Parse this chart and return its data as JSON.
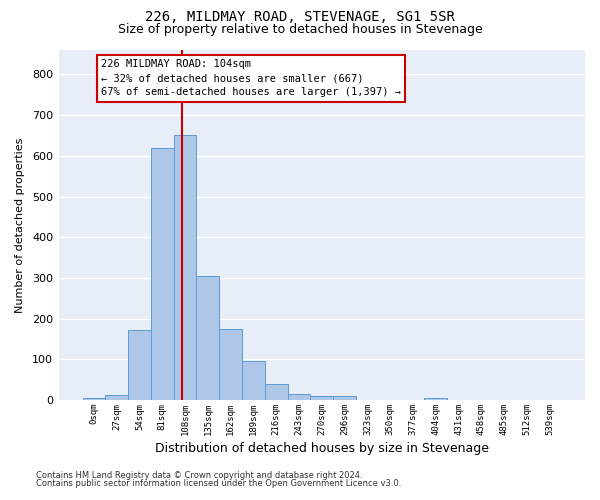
{
  "title1": "226, MILDMAY ROAD, STEVENAGE, SG1 5SR",
  "title2": "Size of property relative to detached houses in Stevenage",
  "xlabel": "Distribution of detached houses by size in Stevenage",
  "ylabel": "Number of detached properties",
  "bar_labels": [
    "0sqm",
    "27sqm",
    "54sqm",
    "81sqm",
    "108sqm",
    "135sqm",
    "162sqm",
    "189sqm",
    "216sqm",
    "243sqm",
    "270sqm",
    "296sqm",
    "323sqm",
    "350sqm",
    "377sqm",
    "404sqm",
    "431sqm",
    "458sqm",
    "485sqm",
    "512sqm",
    "539sqm"
  ],
  "bar_values": [
    5,
    13,
    172,
    618,
    651,
    305,
    174,
    97,
    40,
    15,
    11,
    9,
    1,
    0,
    0,
    5,
    0,
    0,
    0,
    0,
    0
  ],
  "bar_color": "#aec6e8",
  "bar_edge_color": "#5b9bd5",
  "subject_line_color": "#cc0000",
  "subject_sqm": 104,
  "bin_width": 27,
  "annotation_line1": "226 MILDMAY ROAD: 104sqm",
  "annotation_line2": "← 32% of detached houses are smaller (667)",
  "annotation_line3": "67% of semi-detached houses are larger (1,397) →",
  "ylim": [
    0,
    860
  ],
  "yticks": [
    0,
    100,
    200,
    300,
    400,
    500,
    600,
    700,
    800
  ],
  "footnote1": "Contains HM Land Registry data © Crown copyright and database right 2024.",
  "footnote2": "Contains public sector information licensed under the Open Government Licence v3.0.",
  "bg_color": "#e8eef8",
  "grid_color": "#ffffff",
  "title1_fontsize": 10,
  "title2_fontsize": 9,
  "xlabel_fontsize": 9,
  "ylabel_fontsize": 8
}
